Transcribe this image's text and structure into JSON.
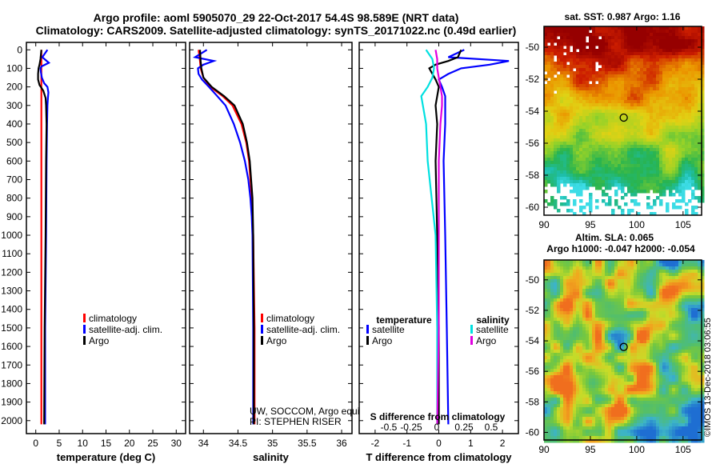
{
  "header": {
    "line1": "Argo profile: aoml 5905070_29 22-Oct-2017 54.4S 98.589E (NRT data)",
    "line2": "Climatology: CARS2009. Satellite-adjusted climatology: synTS_20171022.nc (0.49d earlier)"
  },
  "depth_axis": {
    "ticks": [
      0,
      100,
      200,
      300,
      400,
      500,
      600,
      700,
      800,
      900,
      1000,
      1100,
      1200,
      1300,
      1400,
      1500,
      1600,
      1700,
      1800,
      1900,
      2000
    ],
    "range": [
      -40,
      2070
    ]
  },
  "colors": {
    "climatology": "#ff0000",
    "satellite": "#0000ff",
    "argo": "#000000",
    "sal_satellite": "#00e0e0",
    "sal_argo": "#e000e0"
  },
  "chart_data": [
    {
      "type": "line",
      "name": "temperature-panel",
      "xlabel": "temperature (deg C)",
      "ylabel": "depth",
      "xlim": [
        -2,
        32
      ],
      "xticks": [
        0,
        5,
        10,
        15,
        20,
        25,
        30
      ],
      "legend": [
        "climatology",
        "satellite-adj. clim.",
        "Argo"
      ],
      "series": [
        {
          "name": "climatology",
          "color": "#ff0000",
          "depth": [
            0,
            2020
          ],
          "values": [
            1.2,
            1.2
          ]
        },
        {
          "name": "satellite-adj. clim.",
          "color": "#0000ff",
          "depth": [
            0,
            40,
            70,
            90,
            100,
            120,
            150,
            180,
            200,
            230,
            260,
            300,
            400,
            600,
            1000,
            1500,
            2020
          ],
          "values": [
            2.5,
            1.4,
            2.8,
            1.2,
            1.0,
            1.1,
            1.3,
            1.8,
            2.5,
            2.7,
            2.6,
            2.5,
            2.4,
            2.3,
            2.2,
            2.0,
            2.0
          ]
        },
        {
          "name": "Argo",
          "color": "#000000",
          "depth": [
            0,
            50,
            80,
            100,
            130,
            160,
            190,
            220,
            260,
            300,
            400,
            600,
            1000,
            1500,
            2020
          ],
          "values": [
            1.2,
            1.0,
            0.8,
            0.6,
            0.5,
            0.5,
            0.8,
            1.6,
            2.1,
            2.2,
            2.3,
            2.2,
            2.1,
            1.9,
            1.8
          ]
        }
      ]
    },
    {
      "type": "line",
      "name": "salinity-panel",
      "xlabel": "salinity",
      "ylabel": "depth",
      "xlim": [
        33.8,
        36.15
      ],
      "xticks": [
        34,
        34.5,
        35,
        35.5,
        36
      ],
      "legend": [
        "climatology",
        "satellite-adj. clim.",
        "Argo"
      ],
      "caption": [
        "UW, SOCCOM, Argo equivalent",
        "PI: STEPHEN RISER"
      ],
      "series": [
        {
          "name": "climatology",
          "color": "#ff0000",
          "depth": [
            0,
            60,
            100,
            150,
            200,
            250,
            300,
            400,
            500,
            600,
            700,
            800,
            1000,
            1500,
            2020
          ],
          "values": [
            33.93,
            33.95,
            33.96,
            34.0,
            34.1,
            34.28,
            34.42,
            34.55,
            34.62,
            34.66,
            34.68,
            34.7,
            34.72,
            34.74,
            34.74
          ]
        },
        {
          "name": "satellite-adj. clim.",
          "color": "#0000ff",
          "depth": [
            0,
            40,
            60,
            80,
            100,
            130,
            160,
            200,
            250,
            300,
            400,
            500,
            600,
            700,
            800,
            900,
            1000,
            1500,
            2020
          ],
          "values": [
            34.05,
            33.88,
            34.15,
            34.0,
            33.92,
            33.93,
            33.98,
            34.08,
            34.2,
            34.32,
            34.44,
            34.53,
            34.6,
            34.65,
            34.68,
            34.7,
            34.71,
            34.72,
            34.72
          ]
        },
        {
          "name": "Argo",
          "color": "#000000",
          "depth": [
            0,
            60,
            100,
            150,
            200,
            250,
            300,
            400,
            500,
            600,
            700,
            800,
            1000,
            1500,
            2020
          ],
          "values": [
            33.95,
            33.96,
            33.97,
            34.0,
            34.12,
            34.3,
            34.45,
            34.57,
            34.63,
            34.67,
            34.69,
            34.71,
            34.72,
            34.73,
            34.73
          ]
        }
      ]
    },
    {
      "type": "line",
      "name": "difference-panel",
      "xlabel": "T difference from climatology",
      "xlabel2": "S difference from climatology",
      "xlim": [
        -2.5,
        2.5
      ],
      "xticks": [
        -2,
        -1,
        0,
        1,
        2
      ],
      "sticks": [
        "-0.5",
        "-0.25",
        "0",
        "0.25",
        "0.5"
      ],
      "legend_temp_title": "temperature",
      "legend_sal_title": "salinity",
      "legend": [
        "satellite",
        "Argo",
        "satellite",
        "Argo"
      ],
      "series": [
        {
          "name": "T satellite",
          "color": "#0000ff",
          "depth": [
            0,
            40,
            60,
            80,
            100,
            130,
            160,
            200,
            250,
            300,
            400,
            600,
            1000,
            1500,
            2020
          ],
          "values": [
            0.8,
            0.3,
            2.2,
            1.6,
            0.7,
            0.3,
            0.0,
            0.1,
            0.2,
            0.2,
            0.2,
            0.15,
            0.2,
            0.25,
            0.3
          ]
        },
        {
          "name": "T Argo",
          "color": "#000000",
          "depth": [
            0,
            40,
            60,
            80,
            100,
            130,
            160,
            200,
            250,
            300,
            400,
            600,
            1000,
            1500,
            2020
          ],
          "values": [
            0.7,
            0.6,
            0.3,
            -0.1,
            -0.3,
            -0.2,
            -0.1,
            0.0,
            -0.05,
            -0.1,
            -0.05,
            -0.1,
            -0.05,
            0.0,
            0.0
          ]
        },
        {
          "name": "S satellite",
          "color": "#00e0e0",
          "depth": [
            0,
            50,
            100,
            150,
            200,
            250,
            300,
            400,
            600,
            1000,
            1500,
            2020
          ],
          "values": [
            -0.4,
            -0.2,
            -0.15,
            -0.2,
            -0.35,
            -0.55,
            -0.5,
            -0.4,
            -0.35,
            -0.1,
            -0.05,
            -0.05
          ]
        },
        {
          "name": "S Argo",
          "color": "#e000e0",
          "depth": [
            0,
            50,
            100,
            150,
            200,
            250,
            300,
            400,
            600,
            1000,
            1500,
            2020
          ],
          "values": [
            -0.1,
            -0.05,
            -0.05,
            0.0,
            0.05,
            0.1,
            0.1,
            0.05,
            0.0,
            0.0,
            0.0,
            -0.05
          ]
        }
      ]
    },
    {
      "type": "heatmap",
      "name": "sst-map",
      "title": "sat. SST: 0.987  Argo: 1.16",
      "xticks": [
        90,
        95,
        100,
        105
      ],
      "yticks": [
        -50,
        -52,
        -54,
        -56,
        -58,
        -60
      ],
      "xlim": [
        90,
        107
      ],
      "ylim": [
        -60.5,
        -48.7
      ],
      "marker": {
        "lon": 98.6,
        "lat": -54.4
      }
    },
    {
      "type": "heatmap",
      "name": "sla-map",
      "title": "Altim. SLA: 0.065",
      "subtitle": "Argo h1000: -0.047  h2000: -0.054",
      "xticks": [
        90,
        95,
        100,
        105
      ],
      "yticks": [
        -50,
        -52,
        -54,
        -56,
        -58,
        -60
      ],
      "xlim": [
        90,
        107
      ],
      "ylim": [
        -60.5,
        -48.7
      ],
      "marker": {
        "lon": 98.6,
        "lat": -54.4
      }
    }
  ],
  "watermark": "©IMOS 13-Dec-2018 03:06:55"
}
